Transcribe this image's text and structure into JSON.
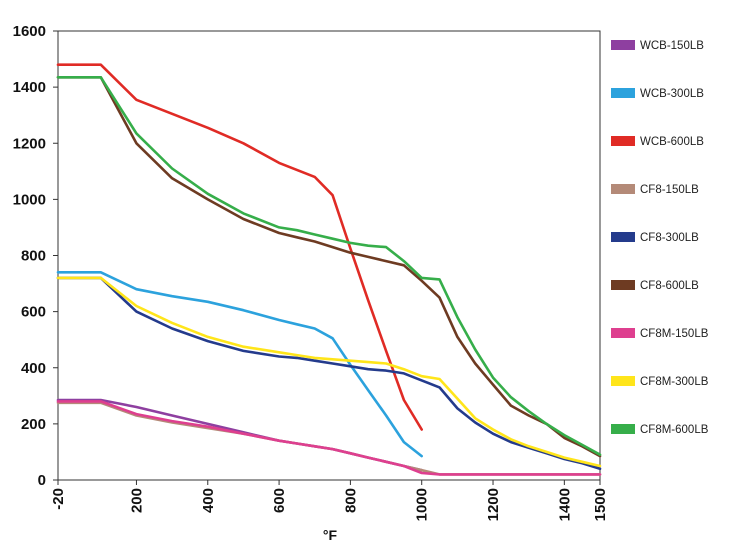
{
  "chart_data": {
    "type": "line",
    "xlabel": "°F",
    "ylabel": "",
    "xlim": [
      -20,
      1500
    ],
    "ylim": [
      0,
      1600
    ],
    "y_ticks": [
      "0",
      "200",
      "400",
      "600",
      "800",
      "1000",
      "1200",
      "1400",
      "1600"
    ],
    "x_ticks": [
      "-20",
      "200",
      "400",
      "600",
      "800",
      "1000",
      "1200",
      "1400",
      "1500"
    ],
    "grid": false,
    "legend_position": "right",
    "series": [
      {
        "name": "WCB-150LB",
        "color": "#8e3fa0",
        "points": [
          [
            -20,
            285
          ],
          [
            100,
            285
          ],
          [
            200,
            260
          ],
          [
            300,
            230
          ],
          [
            400,
            200
          ],
          [
            500,
            170
          ],
          [
            600,
            140
          ],
          [
            650,
            130
          ],
          [
            700,
            120
          ],
          [
            750,
            110
          ],
          [
            800,
            95
          ],
          [
            850,
            80
          ],
          [
            900,
            65
          ],
          [
            950,
            50
          ],
          [
            1000,
            35
          ]
        ]
      },
      {
        "name": "WCB-300LB",
        "color": "#2ca2dd",
        "points": [
          [
            -20,
            740
          ],
          [
            100,
            740
          ],
          [
            200,
            680
          ],
          [
            300,
            655
          ],
          [
            400,
            635
          ],
          [
            500,
            605
          ],
          [
            600,
            570
          ],
          [
            650,
            555
          ],
          [
            700,
            540
          ],
          [
            750,
            505
          ],
          [
            800,
            410
          ],
          [
            850,
            320
          ],
          [
            900,
            230
          ],
          [
            950,
            135
          ],
          [
            1000,
            85
          ]
        ]
      },
      {
        "name": "WCB-600LB",
        "color": "#e02b25",
        "points": [
          [
            -20,
            1480
          ],
          [
            100,
            1480
          ],
          [
            200,
            1355
          ],
          [
            300,
            1305
          ],
          [
            400,
            1255
          ],
          [
            500,
            1200
          ],
          [
            600,
            1130
          ],
          [
            650,
            1105
          ],
          [
            700,
            1080
          ],
          [
            750,
            1015
          ],
          [
            800,
            825
          ],
          [
            850,
            640
          ],
          [
            900,
            460
          ],
          [
            950,
            285
          ],
          [
            1000,
            180
          ]
        ]
      },
      {
        "name": "CF8-150LB",
        "color": "#b48a78",
        "points": [
          [
            -20,
            275
          ],
          [
            100,
            275
          ],
          [
            200,
            230
          ],
          [
            300,
            205
          ],
          [
            400,
            185
          ],
          [
            500,
            165
          ],
          [
            600,
            140
          ],
          [
            650,
            130
          ],
          [
            700,
            120
          ],
          [
            750,
            110
          ],
          [
            800,
            95
          ],
          [
            850,
            80
          ],
          [
            900,
            65
          ],
          [
            950,
            50
          ],
          [
            1000,
            35
          ],
          [
            1050,
            20
          ],
          [
            1100,
            20
          ],
          [
            1150,
            20
          ],
          [
            1200,
            20
          ],
          [
            1250,
            20
          ],
          [
            1300,
            20
          ],
          [
            1350,
            20
          ],
          [
            1400,
            20
          ],
          [
            1450,
            20
          ],
          [
            1500,
            20
          ]
        ]
      },
      {
        "name": "CF8-300LB",
        "color": "#243b8c",
        "points": [
          [
            -20,
            720
          ],
          [
            100,
            720
          ],
          [
            200,
            600
          ],
          [
            300,
            540
          ],
          [
            400,
            495
          ],
          [
            500,
            460
          ],
          [
            600,
            440
          ],
          [
            650,
            435
          ],
          [
            700,
            425
          ],
          [
            750,
            415
          ],
          [
            800,
            405
          ],
          [
            850,
            395
          ],
          [
            900,
            390
          ],
          [
            950,
            380
          ],
          [
            1000,
            355
          ],
          [
            1050,
            330
          ],
          [
            1100,
            255
          ],
          [
            1150,
            205
          ],
          [
            1200,
            165
          ],
          [
            1250,
            135
          ],
          [
            1300,
            115
          ],
          [
            1350,
            95
          ],
          [
            1400,
            75
          ],
          [
            1450,
            60
          ],
          [
            1500,
            40
          ]
        ]
      },
      {
        "name": "CF8-600LB",
        "color": "#6e3b22",
        "points": [
          [
            -20,
            1435
          ],
          [
            100,
            1435
          ],
          [
            200,
            1200
          ],
          [
            300,
            1075
          ],
          [
            400,
            1000
          ],
          [
            500,
            930
          ],
          [
            600,
            880
          ],
          [
            650,
            865
          ],
          [
            700,
            850
          ],
          [
            750,
            830
          ],
          [
            800,
            810
          ],
          [
            850,
            795
          ],
          [
            900,
            780
          ],
          [
            950,
            765
          ],
          [
            1000,
            710
          ],
          [
            1050,
            650
          ],
          [
            1100,
            510
          ],
          [
            1150,
            415
          ],
          [
            1200,
            340
          ],
          [
            1250,
            265
          ],
          [
            1300,
            230
          ],
          [
            1350,
            200
          ],
          [
            1400,
            150
          ],
          [
            1450,
            120
          ],
          [
            1500,
            85
          ]
        ]
      },
      {
        "name": "CF8M-150LB",
        "color": "#de3f8f",
        "points": [
          [
            -20,
            280
          ],
          [
            100,
            280
          ],
          [
            200,
            235
          ],
          [
            300,
            210
          ],
          [
            400,
            190
          ],
          [
            500,
            165
          ],
          [
            600,
            140
          ],
          [
            650,
            130
          ],
          [
            700,
            120
          ],
          [
            750,
            110
          ],
          [
            800,
            95
          ],
          [
            850,
            80
          ],
          [
            900,
            65
          ],
          [
            950,
            50
          ],
          [
            1000,
            25
          ],
          [
            1050,
            20
          ],
          [
            1100,
            20
          ],
          [
            1150,
            20
          ],
          [
            1200,
            20
          ],
          [
            1250,
            20
          ],
          [
            1300,
            20
          ],
          [
            1350,
            20
          ],
          [
            1400,
            20
          ],
          [
            1450,
            20
          ],
          [
            1500,
            20
          ]
        ]
      },
      {
        "name": "CF8M-300LB",
        "color": "#ffe51a",
        "points": [
          [
            -20,
            720
          ],
          [
            100,
            720
          ],
          [
            200,
            620
          ],
          [
            300,
            560
          ],
          [
            400,
            510
          ],
          [
            500,
            475
          ],
          [
            600,
            455
          ],
          [
            650,
            445
          ],
          [
            700,
            435
          ],
          [
            750,
            430
          ],
          [
            800,
            425
          ],
          [
            850,
            420
          ],
          [
            900,
            415
          ],
          [
            950,
            395
          ],
          [
            1000,
            370
          ],
          [
            1050,
            360
          ],
          [
            1100,
            290
          ],
          [
            1150,
            220
          ],
          [
            1200,
            180
          ],
          [
            1250,
            145
          ],
          [
            1300,
            120
          ],
          [
            1350,
            100
          ],
          [
            1400,
            80
          ],
          [
            1450,
            65
          ],
          [
            1500,
            50
          ]
        ]
      },
      {
        "name": "CF8M-600LB",
        "color": "#36ae4a",
        "points": [
          [
            -20,
            1435
          ],
          [
            100,
            1435
          ],
          [
            200,
            1235
          ],
          [
            300,
            1110
          ],
          [
            400,
            1020
          ],
          [
            500,
            950
          ],
          [
            600,
            900
          ],
          [
            650,
            890
          ],
          [
            700,
            875
          ],
          [
            750,
            860
          ],
          [
            800,
            845
          ],
          [
            850,
            835
          ],
          [
            900,
            830
          ],
          [
            950,
            780
          ],
          [
            1000,
            720
          ],
          [
            1050,
            715
          ],
          [
            1100,
            580
          ],
          [
            1150,
            465
          ],
          [
            1200,
            365
          ],
          [
            1250,
            295
          ],
          [
            1300,
            245
          ],
          [
            1350,
            200
          ],
          [
            1400,
            160
          ],
          [
            1450,
            125
          ],
          [
            1500,
            90
          ]
        ]
      }
    ]
  }
}
